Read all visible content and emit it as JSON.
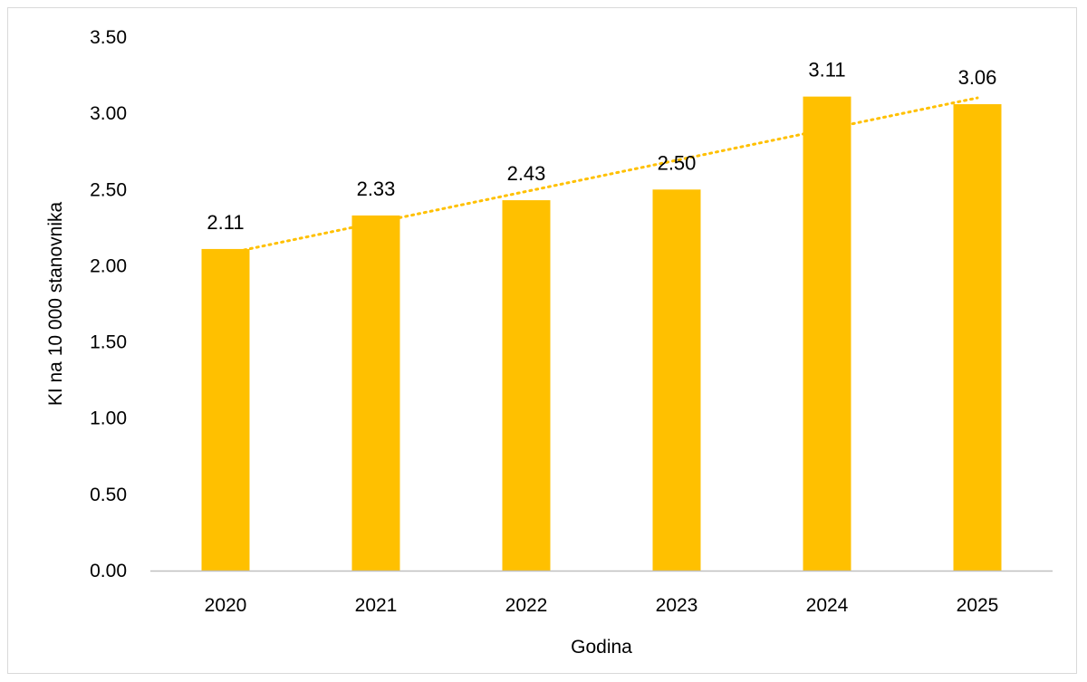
{
  "chart_data": {
    "type": "bar",
    "categories": [
      "2020",
      "2021",
      "2022",
      "2023",
      "2024",
      "2025"
    ],
    "values": [
      2.11,
      2.33,
      2.43,
      2.5,
      3.11,
      3.06
    ],
    "data_labels": [
      "2.11",
      "2.33",
      "2.43",
      "2.50",
      "3.11",
      "3.06"
    ],
    "ylim": [
      0,
      3.5
    ],
    "yticks": [
      "0.00",
      "0.50",
      "1.00",
      "1.50",
      "2.00",
      "2.50",
      "3.00",
      "3.50"
    ],
    "xlabel": "Godina",
    "ylabel": "KI na 10 000 stanovnika",
    "grid": false,
    "trendline": {
      "type": "linear",
      "style": "dotted"
    },
    "colors": {
      "bar": "#FFC000",
      "trendline": "#FFC000",
      "axis": "#bfbfbf"
    }
  }
}
